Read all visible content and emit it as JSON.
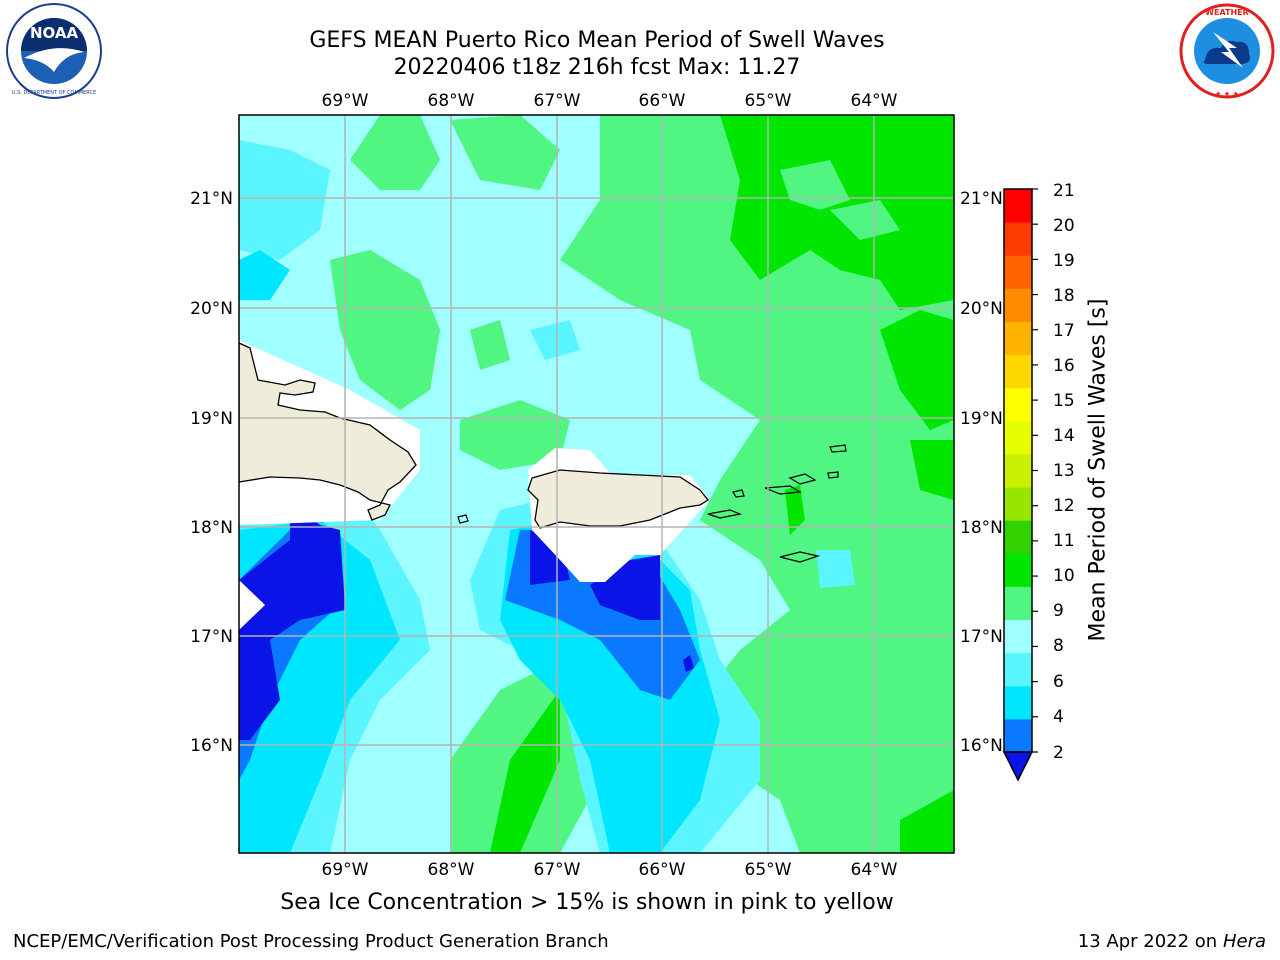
{
  "header": {
    "title_line1": "GEFS MEAN Puerto Rico Mean Period of Swell Waves",
    "title_line2": "20220406 t18z 216h fcst   Max: 11.27"
  },
  "logos": {
    "left": {
      "name": "noaa-logo",
      "text": "NOAA",
      "ring_text": "NATIONAL OCEANIC AND ATMOSPHERIC ADMINISTRATION · U.S. DEPARTMENT OF COMMERCE"
    },
    "right": {
      "name": "nws-logo",
      "ring_text": "NATIONAL WEATHER SERVICE"
    }
  },
  "map": {
    "lon_labels": [
      "69°W",
      "68°W",
      "67°W",
      "66°W",
      "65°W",
      "64°W"
    ],
    "lat_labels": [
      "21°N",
      "20°N",
      "19°N",
      "18°N",
      "17°N",
      "16°N"
    ],
    "grid": true,
    "land_color": "#efecdc"
  },
  "colorbar": {
    "label": "Mean Period of Swell Waves [s]",
    "ticks": [
      "2",
      "4",
      "6",
      "8",
      "9",
      "10",
      "11",
      "12",
      "13",
      "14",
      "15",
      "16",
      "17",
      "18",
      "19",
      "20",
      "21"
    ],
    "levels": [
      {
        "range": "<2",
        "color": "#0a14e6"
      },
      {
        "range": "2-4",
        "color": "#0a78ff"
      },
      {
        "range": "4-6",
        "color": "#00e6ff"
      },
      {
        "range": "6-8",
        "color": "#5af5ff"
      },
      {
        "range": "8-9",
        "color": "#a0ffff"
      },
      {
        "range": "9-10",
        "color": "#50f582"
      },
      {
        "range": "10-11",
        "color": "#00e600"
      },
      {
        "range": "11-12",
        "color": "#32d200"
      },
      {
        "range": "12-13",
        "color": "#96e600"
      },
      {
        "range": "13-14",
        "color": "#c8f000"
      },
      {
        "range": "14-15",
        "color": "#e6ff00"
      },
      {
        "range": "15-16",
        "color": "#ffff00"
      },
      {
        "range": "16-17",
        "color": "#ffd700"
      },
      {
        "range": "17-18",
        "color": "#ffb400"
      },
      {
        "range": "18-19",
        "color": "#ff8c00"
      },
      {
        "range": "19-20",
        "color": "#ff6400"
      },
      {
        "range": "20-21",
        "color": "#ff3c00"
      },
      {
        "range": ">21",
        "color": "#ff0000"
      }
    ]
  },
  "note": "Sea Ice Concentration > 15% is shown in pink to yellow",
  "footer": {
    "left": "NCEP/EMC/Verification Post Processing Product Generation Branch",
    "right_prefix": "13 Apr 2022 on ",
    "right_host": "Hera"
  }
}
